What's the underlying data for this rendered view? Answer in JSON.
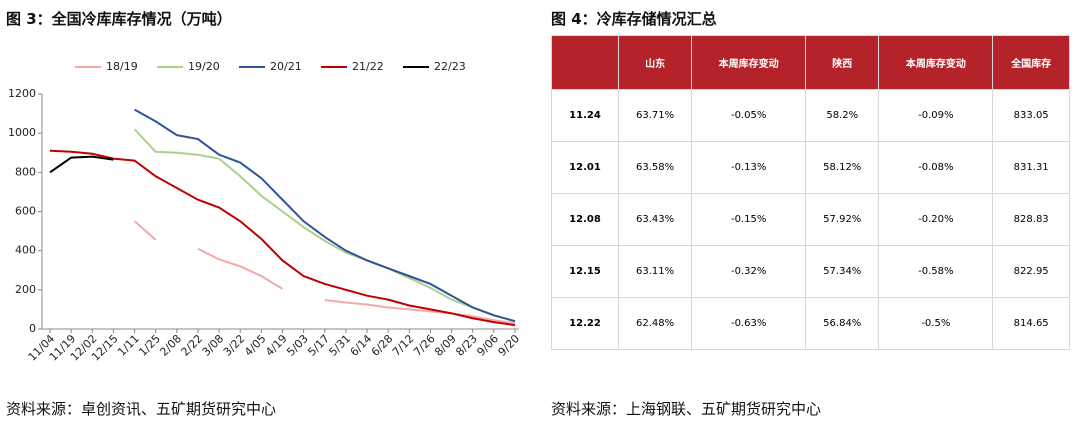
{
  "chart_data": {
    "type": "line",
    "title": "图 3：全国冷库库存情况（万吨）",
    "source": "资料来源：卓创资讯、五矿期货研究中心",
    "categories": [
      "11/04",
      "11/19",
      "12/02",
      "12/15",
      "1/11",
      "1/25",
      "2/08",
      "2/22",
      "3/08",
      "3/22",
      "4/05",
      "4/19",
      "5/03",
      "5/17",
      "5/31",
      "6/14",
      "6/28",
      "7/12",
      "7/26",
      "8/09",
      "8/23",
      "9/06",
      "9/20"
    ],
    "series": [
      {
        "name": "18/19",
        "color": "#f4a9a8",
        "values": [
          null,
          null,
          null,
          null,
          550,
          455,
          null,
          410,
          355,
          320,
          270,
          205,
          null,
          148,
          135,
          125,
          110,
          100,
          90,
          80,
          65,
          45,
          30
        ]
      },
      {
        "name": "19/20",
        "color": "#a9d18e",
        "values": [
          null,
          null,
          null,
          null,
          1020,
          905,
          900,
          890,
          870,
          780,
          680,
          600,
          520,
          450,
          390,
          350,
          310,
          260,
          210,
          150,
          110,
          70,
          40
        ]
      },
      {
        "name": "20/21",
        "color": "#2f5597",
        "values": [
          null,
          null,
          null,
          null,
          1120,
          1060,
          990,
          970,
          890,
          850,
          770,
          660,
          550,
          470,
          400,
          350,
          310,
          270,
          230,
          170,
          110,
          70,
          40
        ]
      },
      {
        "name": "21/22",
        "color": "#c00000",
        "values": [
          910,
          905,
          895,
          870,
          860,
          780,
          720,
          660,
          620,
          550,
          460,
          350,
          270,
          230,
          200,
          170,
          150,
          120,
          100,
          80,
          55,
          35,
          20
        ]
      },
      {
        "name": "22/23",
        "color": "#000000",
        "values": [
          800,
          875,
          880,
          865,
          null,
          null,
          null,
          null,
          null,
          null,
          null,
          null,
          null,
          null,
          null,
          null,
          null,
          null,
          null,
          null,
          null,
          null,
          null
        ]
      }
    ],
    "ylim": [
      0,
      1200
    ],
    "yticks": [
      0,
      200,
      400,
      600,
      800,
      1000,
      1200
    ]
  },
  "table": {
    "title": "图 4：冷库存储情况汇总",
    "header": [
      "山东",
      "本周库存变动",
      "陕西",
      "本周库存变动",
      "全国库存"
    ],
    "rows": [
      [
        "11.24",
        "63.71%",
        "-0.05%",
        "58.2%",
        "-0.09%",
        "833.05"
      ],
      [
        "12.01",
        "63.58%",
        "-0.13%",
        "58.12%",
        "-0.08%",
        "831.31"
      ],
      [
        "12.08",
        "63.43%",
        "-0.15%",
        "57.92%",
        "-0.20%",
        "828.83"
      ],
      [
        "12.15",
        "63.11%",
        "-0.32%",
        "57.34%",
        "-0.58%",
        "822.95"
      ],
      [
        "12.22",
        "62.48%",
        "-0.63%",
        "56.84%",
        "-0.5%",
        "814.65"
      ]
    ],
    "source": "资料来源：上海钢联、五矿期货研究中心"
  }
}
